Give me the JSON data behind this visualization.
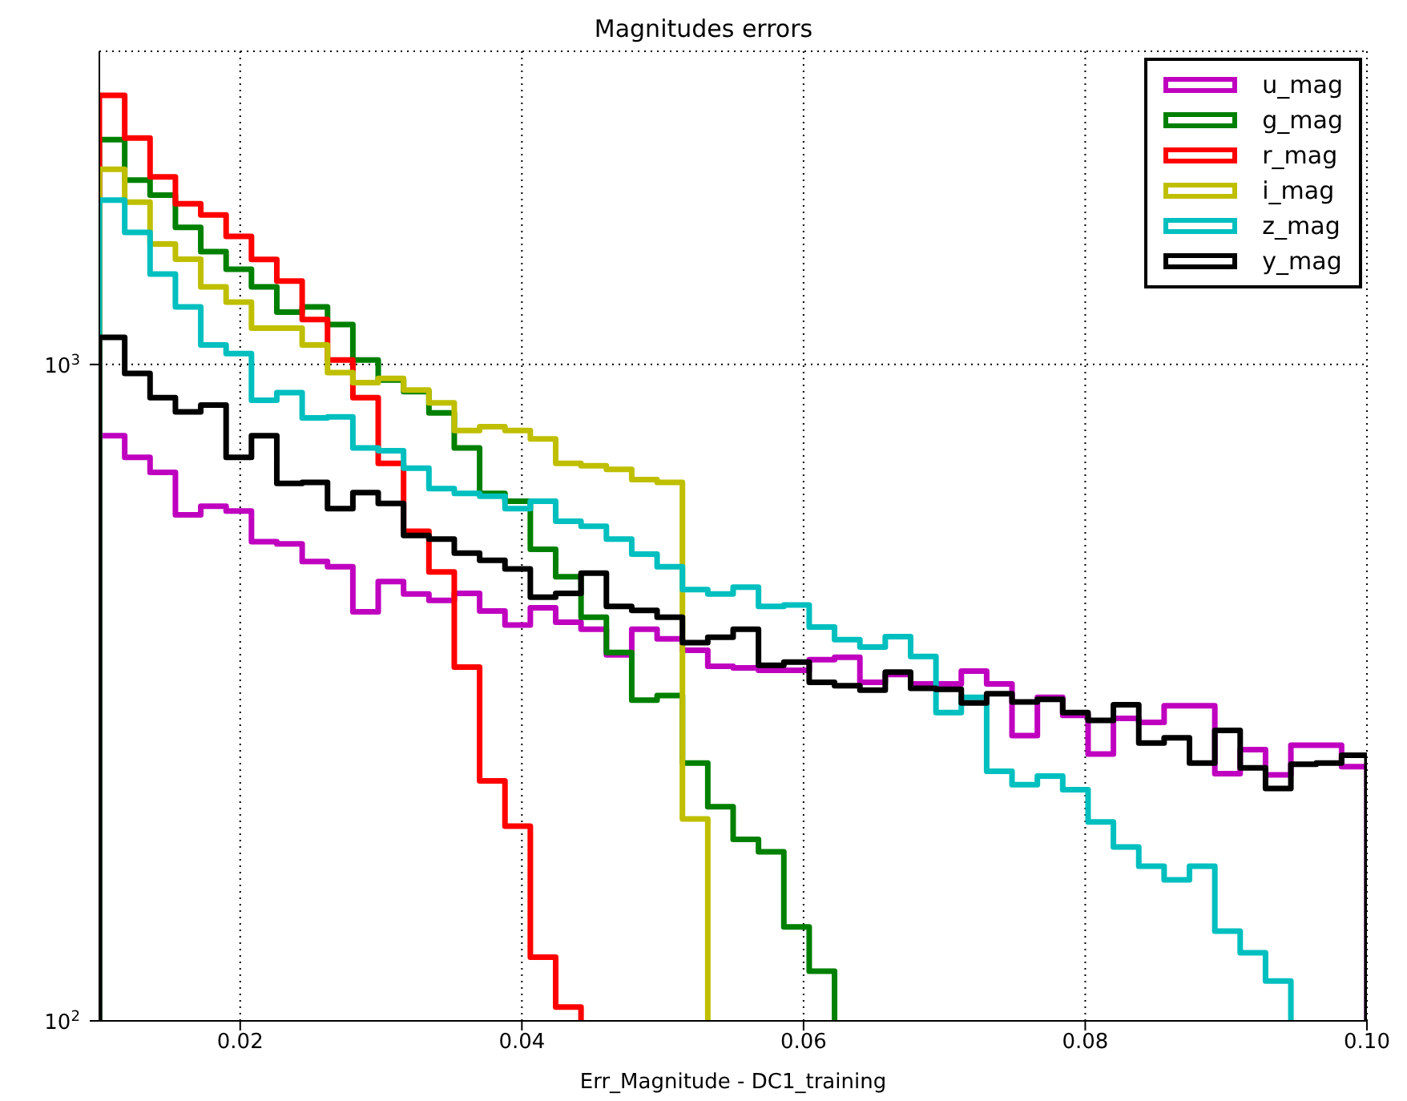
{
  "chart_data": {
    "type": "histogram",
    "title": "Magnitudes errors",
    "xlabel": "Err_Magnitude - DC1_training",
    "log": "y",
    "grid": true,
    "legend": "top right",
    "xlim": [
      0.01,
      0.1
    ],
    "xticks": [
      0.02,
      0.04,
      0.06,
      0.08,
      {
        "value": 0.1,
        "label": "0.10"
      }
    ],
    "ylim": [
      100,
      3000
    ],
    "yticks": [
      {
        "value": 100,
        "label": "10$^{2}$"
      },
      {
        "value": 1000,
        "label": "10$^{3}$"
      }
    ],
    "bins": [
      0.01,
      0.0118,
      0.0136,
      0.0154,
      0.0172,
      0.019,
      0.0208,
      0.0226,
      0.0244,
      0.0262,
      0.028,
      0.0298,
      0.0316,
      0.0334,
      0.0352,
      0.037,
      0.0388,
      0.0406,
      0.0424,
      0.0442,
      0.046,
      0.0478,
      0.0496,
      0.0514,
      0.0532,
      0.055,
      0.0568,
      0.0586,
      0.0604,
      0.0622,
      0.064,
      0.0658,
      0.0676,
      0.0694,
      0.0712,
      0.073,
      0.0748,
      0.0766,
      0.0784,
      0.0802,
      0.082,
      0.0838,
      0.0856,
      0.0874,
      0.0892,
      0.091,
      0.0928,
      0.0946,
      0.0964,
      0.0982,
      0.1
    ],
    "series": [
      {
        "name": "u_mag",
        "color": "#bf00bf",
        "values": [
          779,
          722,
          685,
          590,
          608,
          598,
          537,
          533,
          501,
          492,
          420,
          467,
          447,
          437,
          448,
          421,
          401,
          426,
          405,
          395,
          361,
          395,
          382,
          367,
          347,
          345,
          342,
          342,
          355,
          358,
          328,
          337,
          326,
          326,
          341,
          326,
          272,
          311,
          292,
          255,
          289,
          285,
          302,
          302,
          238,
          259,
          237,
          263,
          263,
          244
        ]
      },
      {
        "name": "g_mag",
        "color": "#008000",
        "bins": [
          0.01,
          0.0118,
          0.0136,
          0.0154,
          0.0172,
          0.019,
          0.0208,
          0.0226,
          0.0244,
          0.0262,
          0.028,
          0.0298,
          0.0316,
          0.0334,
          0.0352,
          0.037,
          0.0388,
          0.0406,
          0.0424,
          0.0442,
          0.046,
          0.0478,
          0.0496,
          0.0514,
          0.0532,
          0.055,
          0.0568,
          0.0586,
          0.0604,
          0.0622
        ],
        "values": [
          2200,
          1910,
          1811,
          1618,
          1486,
          1397,
          1313,
          1202,
          1224,
          1150,
          1016,
          947,
          909,
          844,
          746,
          636,
          619,
          523,
          475,
          412,
          364,
          308,
          313,
          247,
          212,
          189,
          181,
          139,
          119
        ]
      },
      {
        "name": "r_mag",
        "color": "#ff0000",
        "bins": [
          0.01,
          0.0118,
          0.0136,
          0.0154,
          0.0172,
          0.019,
          0.0208,
          0.0226,
          0.0244,
          0.0262,
          0.028,
          0.0298,
          0.0316,
          0.0334,
          0.0352,
          0.037,
          0.0388,
          0.0406,
          0.0424,
          0.0442
        ],
        "values": [
          2570,
          2213,
          1931,
          1758,
          1690,
          1567,
          1446,
          1340,
          1171,
          1016,
          890,
          707,
          557,
          483,
          346,
          232,
          198,
          125,
          105
        ]
      },
      {
        "name": "i_mag",
        "color": "#bfbf00",
        "bins": [
          0.01,
          0.0118,
          0.0136,
          0.0154,
          0.0172,
          0.019,
          0.0208,
          0.0226,
          0.0244,
          0.0262,
          0.028,
          0.0298,
          0.0316,
          0.0334,
          0.0352,
          0.037,
          0.0388,
          0.0406,
          0.0424,
          0.0442,
          0.046,
          0.0478,
          0.0496,
          0.0514,
          0.0532
        ],
        "values": [
          1983,
          1767,
          1526,
          1447,
          1313,
          1245,
          1136,
          1136,
          1071,
          972,
          938,
          952,
          914,
          874,
          793,
          804,
          793,
          770,
          707,
          701,
          692,
          668,
          661,
          203
        ]
      },
      {
        "name": "z_mag",
        "color": "#00bfbf",
        "bins": [
          0.01,
          0.0118,
          0.0136,
          0.0154,
          0.0172,
          0.019,
          0.0208,
          0.0226,
          0.0244,
          0.0262,
          0.028,
          0.0298,
          0.0316,
          0.0334,
          0.0352,
          0.037,
          0.0388,
          0.0406,
          0.0424,
          0.0442,
          0.046,
          0.0478,
          0.0496,
          0.0514,
          0.0532,
          0.055,
          0.0568,
          0.0586,
          0.0604,
          0.0622,
          0.064,
          0.0658,
          0.0676,
          0.0694,
          0.0712,
          0.073,
          0.0748,
          0.0766,
          0.0784,
          0.0802,
          0.082,
          0.0838,
          0.0856,
          0.0874,
          0.0892,
          0.091,
          0.0928,
          0.0946
        ],
        "values": [
          1780,
          1589,
          1373,
          1224,
          1071,
          1039,
          882,
          906,
          829,
          832,
          746,
          739,
          695,
          647,
          636,
          630,
          603,
          619,
          577,
          567,
          542,
          514,
          492,
          454,
          447,
          458,
          428,
          430,
          398,
          381,
          371,
          385,
          359,
          295,
          311,
          240,
          229,
          236,
          225,
          201,
          184,
          172,
          164,
          172,
          137,
          127,
          115
        ]
      },
      {
        "name": "y_mag",
        "color": "#000000",
        "values": [
          1100,
          969,
          890,
          847,
          867,
          722,
          779,
          659,
          661,
          603,
          638,
          614,
          549,
          542,
          516,
          503,
          488,
          442,
          448,
          481,
          428,
          422,
          412,
          377,
          384,
          395,
          348,
          352,
          328,
          324,
          319,
          340,
          321,
          320,
          305,
          315,
          306,
          309,
          295,
          287,
          303,
          265,
          270,
          247,
          277,
          243,
          226,
          246,
          247,
          254
        ]
      }
    ]
  }
}
